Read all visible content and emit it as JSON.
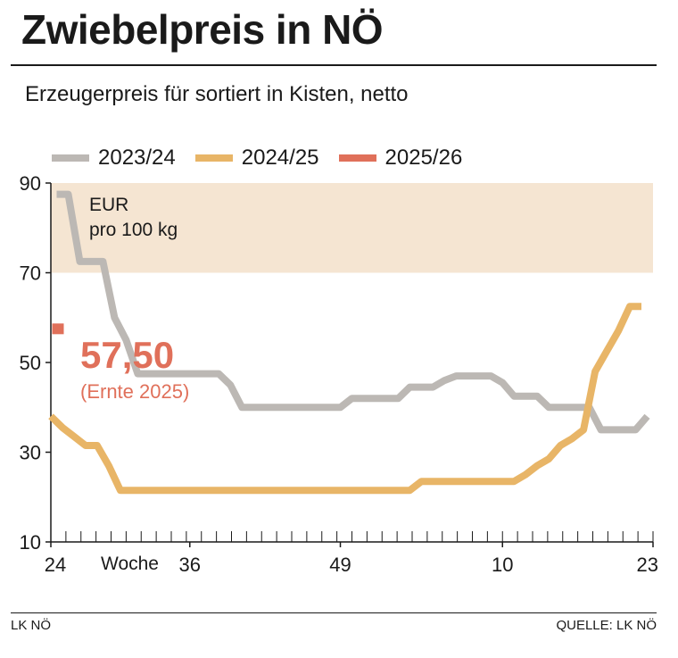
{
  "header": {
    "title": "Zwiebelpreis in NÖ",
    "subtitle": "Erzeugerpreis für sortiert in Kisten, netto"
  },
  "footer": {
    "left": "LK NÖ",
    "right": "QUELLE: LK NÖ"
  },
  "colors": {
    "series_2023": "#bcb8b4",
    "series_2024": "#e8b567",
    "series_2025": "#e0705a",
    "band": "#f5e5d2",
    "axis": "#1a1a1a"
  },
  "chart_data": {
    "type": "line",
    "title": "Zwiebelpreis in NÖ",
    "subtitle": "Erzeugerpreis für sortiert in Kisten, netto",
    "unit_label_line1": "EUR",
    "unit_label_line2": "pro 100 kg",
    "xlabel": "Woche",
    "x_ticks": [
      {
        "week": 0,
        "label": "24"
      },
      {
        "week": 12,
        "label": "36"
      },
      {
        "week": 25,
        "label": "49"
      },
      {
        "week": 39,
        "label": "10"
      },
      {
        "week": 52,
        "label": "23"
      }
    ],
    "xlim": [
      0,
      52
    ],
    "ylim": [
      10,
      90
    ],
    "y_ticks": [
      90,
      70,
      50,
      30,
      10
    ],
    "highlight_band": [
      70,
      90
    ],
    "annotation": {
      "value": "57,50",
      "note": "(Ernte 2025)"
    },
    "series": [
      {
        "name": "2023/24",
        "color": "#bcb8b4",
        "points": [
          [
            0.5,
            87.5
          ],
          [
            1.5,
            87.5
          ],
          [
            2.5,
            72.5
          ],
          [
            4.5,
            72.5
          ],
          [
            5.5,
            60
          ],
          [
            6.5,
            55
          ],
          [
            7.5,
            47.5
          ],
          [
            14.5,
            47.5
          ],
          [
            15.5,
            45
          ],
          [
            16.5,
            40
          ],
          [
            25,
            40
          ],
          [
            26,
            42
          ],
          [
            30,
            42
          ],
          [
            31,
            44.5
          ],
          [
            33,
            44.5
          ],
          [
            34,
            46
          ],
          [
            35,
            47
          ],
          [
            38,
            47
          ],
          [
            39,
            45.5
          ],
          [
            40,
            42.5
          ],
          [
            42,
            42.5
          ],
          [
            43,
            40
          ],
          [
            46.5,
            40
          ],
          [
            47.5,
            35
          ],
          [
            50.5,
            35
          ],
          [
            51.5,
            38
          ]
        ]
      },
      {
        "name": "2024/25",
        "color": "#e8b567",
        "points": [
          [
            0,
            38
          ],
          [
            1,
            35.5
          ],
          [
            2,
            33.5
          ],
          [
            3,
            31.5
          ],
          [
            4,
            31.5
          ],
          [
            5,
            27
          ],
          [
            6,
            21.5
          ],
          [
            31,
            21.5
          ],
          [
            32,
            23.5
          ],
          [
            40,
            23.5
          ],
          [
            41,
            25
          ],
          [
            42,
            27
          ],
          [
            43,
            28.5
          ],
          [
            44,
            31.5
          ],
          [
            45,
            33
          ],
          [
            46,
            35
          ],
          [
            47,
            48
          ],
          [
            48,
            52.5
          ],
          [
            49,
            57
          ],
          [
            50,
            62.5
          ],
          [
            51,
            62.5
          ]
        ]
      },
      {
        "name": "2025/26",
        "color": "#e0705a",
        "points": [
          [
            0.5,
            57.5
          ]
        ]
      }
    ]
  }
}
